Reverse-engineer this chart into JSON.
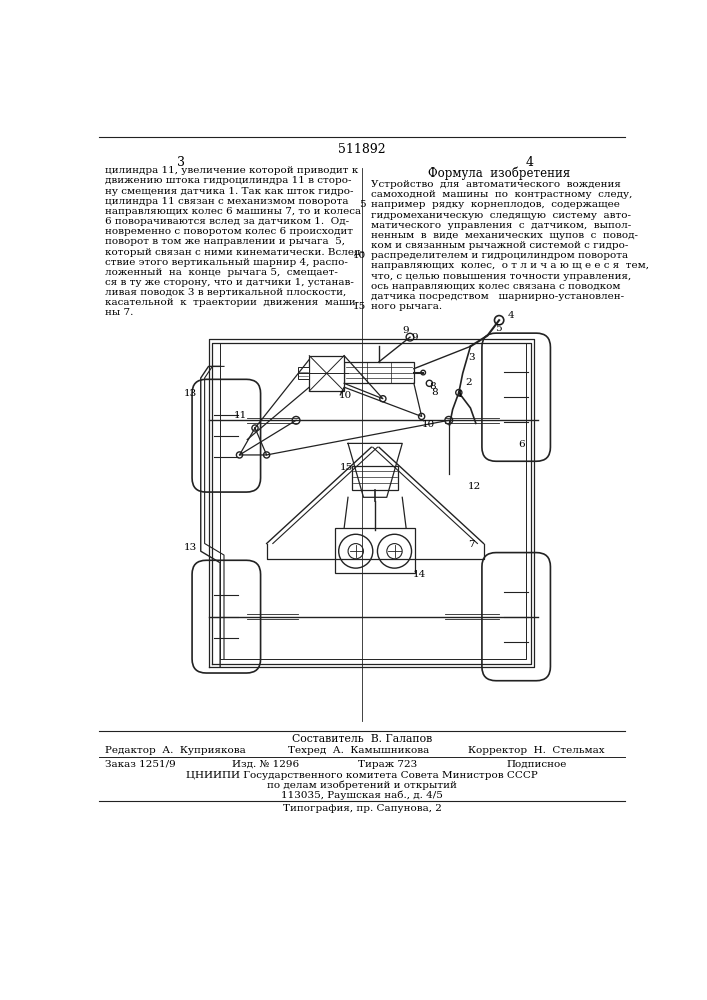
{
  "patent_number": "511892",
  "page_left": "3",
  "page_right": "4",
  "left_text": [
    "цилиндра 11, увеличение которой приводит к",
    "движению штока гидроцилиндра 11 в сторо-",
    "ну смещения датчика 1. Так как шток гидро-",
    "цилиндра 11 связан с механизмом поворота",
    "направляющих колес 6 машины 7, то и колеса",
    "6 поворачиваются вслед за датчиком 1.  Од-",
    "новременно с поворотом колес 6 происходит",
    "поворот в том же направлении и рычага  5,",
    "который связан с ними кинематически. Вслед-",
    "ствие этого вертикальный шарнир 4, распо-",
    "ложенный  на  конце  рычага 5,  смещает-",
    "ся в ту же сторону, что и датчики 1, устанав-",
    "ливая поводок 3 в вертикальной плоскости,",
    "касательной  к  траектории  движения  маши-",
    "ны 7."
  ],
  "right_title": "Формула  изобретения",
  "right_text": [
    "Устройство  для  автоматического  вождения",
    "самоходной  машины  по  контрастному  следу,",
    "например  рядку  корнеплодов,  содержащее",
    "гидромеханическую  следящую  систему  авто-",
    "матического  управления  с  датчиком,  выпол-",
    "ненным  в  виде  механических  щупов  с  повод-",
    "ком и связанным рычажной системой с гидро-",
    "распределителем и гидроцилиндром поворота",
    "направляющих  колес,  о т л и ч а ю щ е е с я  тем,",
    "что, с целью повышения точности управления,",
    "ось направляющих колес связана с поводком",
    "датчика посредством   шарнирно-установлен-",
    "ного рычага."
  ],
  "line_numbers": {
    "2": "5",
    "7": "10",
    "12": "15"
  },
  "bottom_sestavitel": "Составитель  В. Галапов",
  "bottom_redaktor": "Редактор  А.  Куприякова",
  "bottom_tekhred": "Техред  А.  Камышникова",
  "bottom_korrektor": "Корректор  Н.  Стельмах",
  "bottom_zakaz": "Заказ 1251/9",
  "bottom_izd": "Изд. № 1296",
  "bottom_tirazh": "Тираж 723",
  "bottom_podpisnoe": "Подписное",
  "bottom_tsniip": "ЦНИИПИ Государственного комитета Совета Министров СССР",
  "bottom_po_delam": "по делам изобретений и открытий",
  "bottom_address": "113035, Раушская наб., д. 4/5",
  "bottom_tipografiya": "Типография, пр. Сапунова, 2",
  "bg_color": "#ffffff",
  "text_color": "#000000"
}
